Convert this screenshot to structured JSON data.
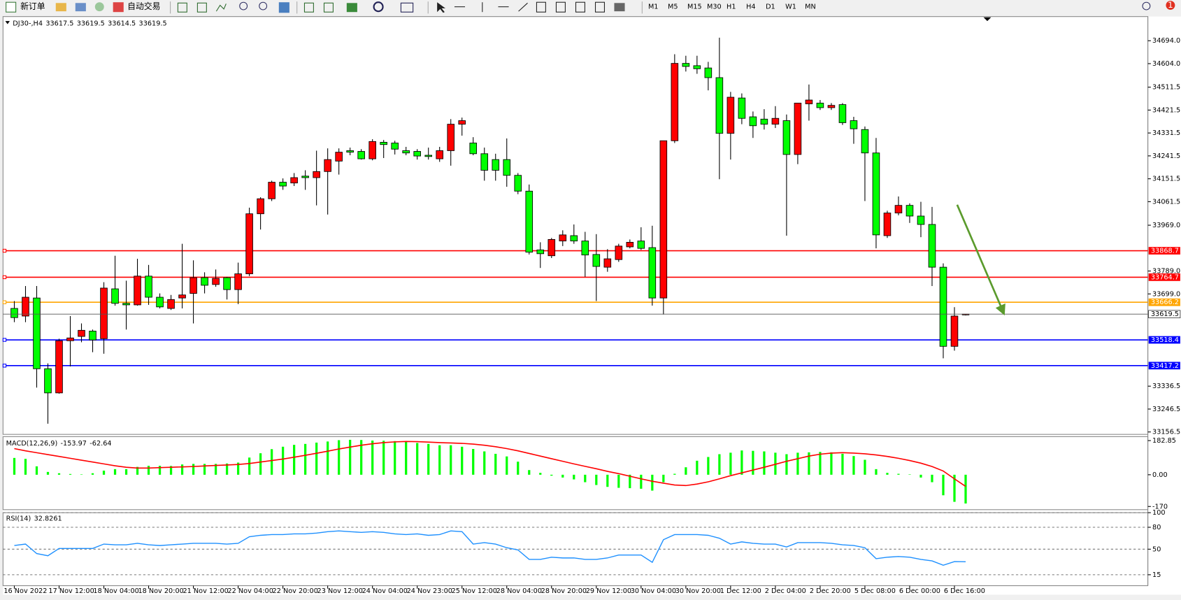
{
  "toolbar": {
    "new_order": "新订单",
    "auto_trade": "自动交易",
    "timeframes": [
      "M1",
      "M5",
      "M15",
      "M30",
      "H1",
      "H4",
      "D1",
      "W1",
      "MN"
    ],
    "badge": "1"
  },
  "chart_data": [
    {
      "type": "candlestick",
      "symbol": "DJ30-,H4",
      "categories": [
        "16 Nov 2022",
        null,
        null,
        null,
        "17 Nov 12:00",
        null,
        null,
        null,
        "18 Nov 04:00",
        null,
        null,
        null,
        "18 Nov 20:00",
        null,
        null,
        null,
        "21 Nov 12:00",
        null,
        null,
        null,
        "22 Nov 04:00",
        null,
        null,
        null,
        "22 Nov 20:00",
        null,
        null,
        null,
        "23 Nov 12:00",
        null,
        null,
        null,
        "24 Nov 04:00",
        null,
        null,
        null,
        "24 Nov 23:00",
        null,
        null,
        null,
        "25 Nov 12:00",
        null,
        null,
        null,
        "28 Nov 04:00",
        null,
        null,
        null,
        "28 Nov 20:00",
        null,
        null,
        null,
        "29 Nov 12:00",
        null,
        null,
        null,
        "30 Nov 04:00",
        null,
        null,
        null,
        "30 Nov 20:00",
        null,
        null,
        null,
        "1 Dec 12:00",
        null,
        null,
        null,
        "2 Dec 04:00",
        null,
        null,
        null,
        "2 Dec 20:00",
        null,
        null,
        null,
        "5 Dec 08:00",
        null,
        null,
        null,
        "6 Dec 00:00",
        null,
        null,
        null,
        "6 Dec 16:00",
        null
      ],
      "open": [
        33642,
        33612,
        33683,
        33405,
        33310,
        33515,
        33532,
        33553,
        33523,
        33719,
        33662,
        33656,
        33769,
        33686,
        33642,
        33683,
        33701,
        33763,
        33736,
        33763,
        33716,
        33778,
        34014,
        34073,
        34138,
        34135,
        34162,
        34156,
        34180,
        34221,
        34262,
        34259,
        34230,
        34295,
        34292,
        34262,
        34259,
        34244,
        34230,
        34262,
        34366,
        34292,
        34250,
        34227,
        34227,
        34165,
        34103,
        33872,
        33849,
        33907,
        33928,
        33907,
        33854,
        33804,
        33834,
        33884,
        33907,
        33881,
        33683,
        34301,
        34605,
        34596,
        34587,
        34549,
        34330,
        34469,
        34395,
        34386,
        34366,
        34380,
        34247,
        34446,
        34449,
        34431,
        34443,
        34380,
        34345,
        34253,
        33928,
        34017,
        34047,
        34005,
        33972,
        33804,
        33493,
        33617.5
      ],
      "high": [
        33671,
        33730,
        33730,
        33426,
        33523,
        33612,
        33583,
        33559,
        33745,
        33849,
        33751,
        33837,
        33813,
        33701,
        33695,
        33896,
        33831,
        33784,
        33795,
        33766,
        33822,
        34038,
        34079,
        34144,
        34153,
        34174,
        34185,
        34262,
        34271,
        34271,
        34274,
        34268,
        34307,
        34304,
        34301,
        34277,
        34268,
        34274,
        34277,
        34386,
        34392,
        34315,
        34274,
        34250,
        34310,
        34174,
        34129,
        33902,
        33919,
        33949,
        33972,
        33943,
        33934,
        33875,
        33896,
        33913,
        33961,
        33967,
        34301,
        34641,
        34635,
        34635,
        34611,
        34706,
        34493,
        34487,
        34416,
        34425,
        34437,
        34404,
        34449,
        34522,
        34461,
        34449,
        34449,
        34395,
        34357,
        34312,
        34026,
        34082,
        34055,
        34061,
        34041,
        33819,
        33647,
        33619.5
      ],
      "low": [
        33588,
        33588,
        33331,
        33189,
        33307,
        33414,
        33509,
        33470,
        33464,
        33653,
        33559,
        33653,
        33656,
        33642,
        33636,
        33642,
        33583,
        33701,
        33727,
        33677,
        33659,
        33769,
        33952,
        34064,
        34108,
        34123,
        34108,
        34047,
        34011,
        34168,
        34244,
        34227,
        34224,
        34233,
        34247,
        34244,
        34227,
        34227,
        34218,
        34203,
        34321,
        34244,
        34144,
        34144,
        34120,
        34091,
        33854,
        33801,
        33840,
        33887,
        33896,
        33766,
        33671,
        33786,
        33825,
        33878,
        33872,
        33653,
        33618,
        34292,
        34573,
        34564,
        34499,
        34150,
        34227,
        34366,
        34312,
        34345,
        34351,
        33928,
        34209,
        34380,
        34422,
        34422,
        34363,
        34289,
        34064,
        33878,
        33919,
        34008,
        33978,
        33922,
        33730,
        33446,
        33476,
        33614.5
      ],
      "close": [
        33606,
        33686,
        33405,
        33310,
        33515,
        33526,
        33556,
        33518,
        33722,
        33662,
        33656,
        33769,
        33686,
        33648,
        33677,
        33695,
        33763,
        33733,
        33760,
        33716,
        33778,
        34014,
        34073,
        34138,
        34123,
        34156,
        34156,
        34180,
        34227,
        34256,
        34256,
        34230,
        34298,
        34286,
        34268,
        34253,
        34241,
        34239,
        34262,
        34366,
        34380,
        34250,
        34185,
        34185,
        34165,
        34103,
        33863,
        33857,
        33913,
        33931,
        33907,
        33852,
        33807,
        33837,
        33887,
        33902,
        33878,
        33683,
        34301,
        34605,
        34593,
        34584,
        34549,
        34330,
        34472,
        34389,
        34360,
        34366,
        34389,
        34247,
        34449,
        34461,
        34431,
        34440,
        34372,
        34348,
        34253,
        33931,
        34017,
        34047,
        34005,
        33972,
        33804,
        33493,
        33612,
        33619.5
      ],
      "up_color": "#ff0000",
      "down_color": "#00ff00",
      "ylim": [
        33147,
        34789
      ],
      "yticks": [
        {
          "value": 34694,
          "label": "34694.0"
        },
        {
          "value": 34604,
          "label": "34604.0"
        },
        {
          "value": 34511.5,
          "label": "34511.5"
        },
        {
          "value": 34421.5,
          "label": "34421.5"
        },
        {
          "value": 34331.5,
          "label": "34331.5"
        },
        {
          "value": 34241.5,
          "label": "34241.5"
        },
        {
          "value": 34151.5,
          "label": "34151.5"
        },
        {
          "value": 34061.5,
          "label": "34061.5"
        },
        {
          "value": 33969,
          "label": "33969.0"
        },
        {
          "value": 33789,
          "label": "33789.0"
        },
        {
          "value": 33699,
          "label": "33699.0"
        },
        {
          "value": 33336.5,
          "label": "33336.5"
        },
        {
          "value": 33246.5,
          "label": "33246.5"
        },
        {
          "value": 33156.5,
          "label": "33156.5"
        }
      ],
      "levels": [
        {
          "value": 33868.7,
          "color": "#ff0000"
        },
        {
          "value": 33764.7,
          "color": "#ff0000"
        },
        {
          "value": 33666.2,
          "color": "#ffa500"
        },
        {
          "value": 33518.4,
          "color": "#0000ff"
        },
        {
          "value": 33417.2,
          "color": "#0000ff"
        }
      ]
    },
    {
      "type": "macd",
      "title": "MACD(12,26,9)",
      "histogram": {
        "color": "#00ff00",
        "values": [
          90,
          85,
          45,
          15,
          8,
          4,
          2,
          8,
          22,
          30,
          30,
          42,
          48,
          48,
          47,
          55,
          58,
          58,
          58,
          60,
          65,
          92,
          115,
          137,
          150,
          160,
          165,
          172,
          178,
          185,
          187,
          186,
          183,
          182,
          180,
          176,
          170,
          165,
          158,
          158,
          150,
          138,
          125,
          112,
          98,
          70,
          25,
          10,
          -5,
          -15,
          -25,
          -40,
          -55,
          -65,
          -70,
          -72,
          -75,
          -85,
          -40,
          5,
          40,
          75,
          95,
          110,
          118,
          130,
          128,
          125,
          118,
          110,
          118,
          120,
          122,
          120,
          112,
          100,
          80,
          30,
          10,
          5,
          2,
          -15,
          -40,
          -110,
          -145,
          -153.97
        ]
      },
      "signal": {
        "color": "#ff0000",
        "values": [
          140,
          128,
          118,
          108,
          98,
          88,
          78,
          68,
          58,
          48,
          40,
          36,
          36,
          38,
          40,
          42,
          44,
          47,
          50,
          52,
          55,
          60,
          68,
          76,
          84,
          94,
          104,
          115,
          126,
          138,
          148,
          158,
          166,
          172,
          176,
          178,
          177,
          175,
          172,
          170,
          168,
          164,
          158,
          150,
          140,
          128,
          114,
          100,
          86,
          72,
          58,
          45,
          32,
          18,
          6,
          -8,
          -22,
          -35,
          -45,
          -55,
          -58,
          -50,
          -38,
          -22,
          -5,
          10,
          25,
          40,
          56,
          72,
          86,
          100,
          110,
          116,
          118,
          116,
          112,
          106,
          98,
          88,
          76,
          62,
          44,
          20,
          -22,
          -62.64
        ]
      },
      "ylim": [
        -187,
        204
      ],
      "yticks": [
        182.85,
        {
          "value": 0,
          "label": "0.00"
        },
        -170
      ]
    },
    {
      "type": "rsi",
      "title": "RSI(14)",
      "color": "#1e90ff",
      "values": [
        55,
        57,
        44,
        41,
        51,
        51,
        51,
        51,
        57,
        56,
        56,
        58,
        56,
        55,
        56,
        57,
        58,
        58,
        58,
        57,
        58,
        67,
        69,
        70,
        70,
        71,
        71,
        72,
        74,
        75,
        74,
        73,
        74,
        73,
        71,
        70,
        71,
        69,
        70,
        75,
        74,
        57,
        59,
        57,
        52,
        49,
        36,
        36,
        39,
        38,
        38,
        36,
        36,
        38,
        42,
        42,
        42,
        32,
        63,
        70,
        70,
        70,
        69,
        65,
        57,
        60,
        58,
        57,
        57,
        53,
        59,
        59,
        59,
        58,
        56,
        55,
        52,
        37,
        39,
        40,
        39,
        36,
        34,
        28,
        33,
        32.8261
      ],
      "ylim": [
        0,
        100
      ],
      "yticks": [
        100,
        80,
        50,
        15
      ]
    }
  ]
}
